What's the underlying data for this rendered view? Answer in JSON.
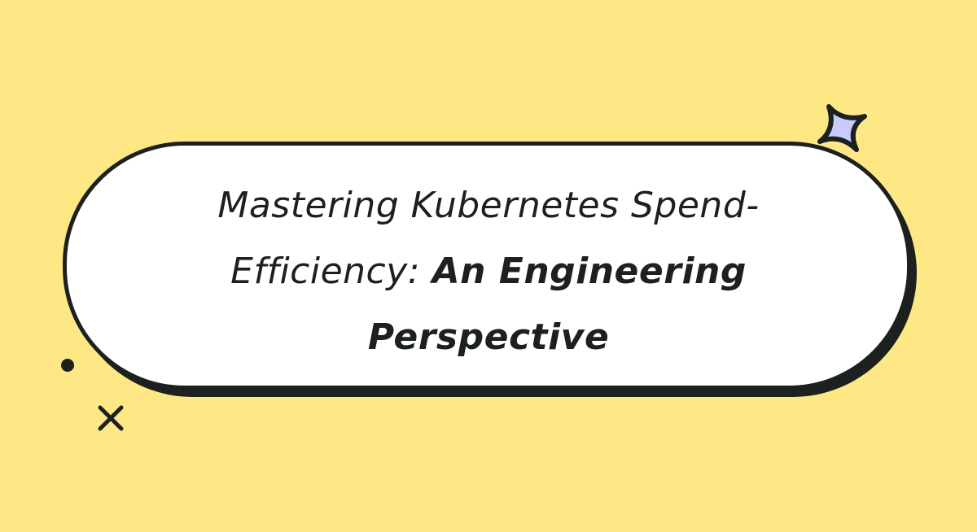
{
  "title": {
    "light_part": "Mastering Kubernetes Spend-Efficiency: ",
    "bold_part": "An Engineering Perspective"
  },
  "colors": {
    "background": "#fee886",
    "pill": "#ffffff",
    "outline": "#1c2120",
    "star": "#c9cbfb"
  },
  "decorations": [
    "sparkle-star-icon",
    "dot-icon",
    "x-mark-icon"
  ]
}
